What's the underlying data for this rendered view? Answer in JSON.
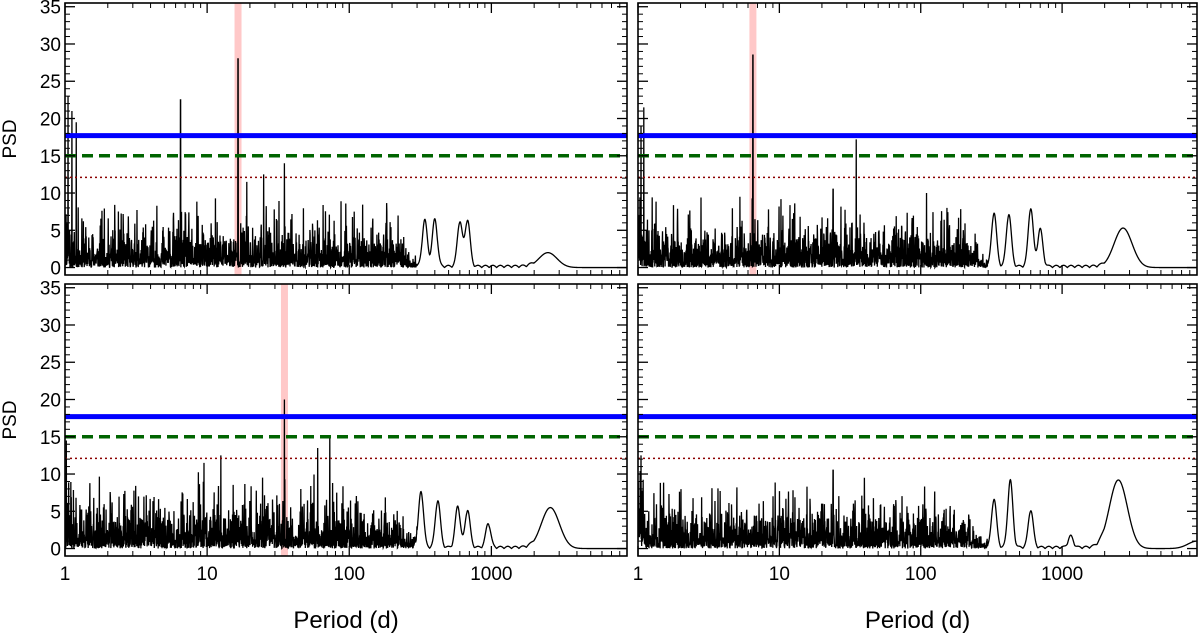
{
  "figure": {
    "xlabel": "Period (d)",
    "ylabel": "PSD"
  },
  "chart_data": [
    {
      "type": "line",
      "panel": "top-left",
      "xscale": "log",
      "xlim": [
        1,
        9000
      ],
      "ylim": [
        -1,
        35.5
      ],
      "ylabel": "PSD",
      "xlabel": "",
      "yticks": [
        "0",
        "5",
        "10",
        "15",
        "20",
        "25",
        "30",
        "35"
      ],
      "xticks": [],
      "highlight_period": 16.5,
      "thresholds": [
        {
          "name": "solid",
          "value": 17.7,
          "color": "#0000ff",
          "style": "solid"
        },
        {
          "name": "dashed",
          "value": 15.0,
          "color": "#006400",
          "style": "dashed"
        },
        {
          "name": "dotted",
          "value": 12.1,
          "color": "#8b0000",
          "style": "dotted"
        }
      ],
      "peaks": [
        [
          1.05,
          23
        ],
        [
          1.12,
          21
        ],
        [
          1.2,
          19.5
        ],
        [
          6.5,
          22.5
        ],
        [
          16.5,
          28
        ],
        [
          35,
          14
        ],
        [
          25,
          12.5
        ],
        [
          19,
          11.5
        ]
      ],
      "bumps": [
        [
          340,
          6.2
        ],
        [
          400,
          6.3
        ],
        [
          600,
          6.0
        ],
        [
          680,
          6.2
        ],
        [
          2500,
          2.0
        ]
      ],
      "noise_level": 3.2,
      "seed": 11
    },
    {
      "type": "line",
      "panel": "top-right",
      "xscale": "log",
      "xlim": [
        1,
        9000
      ],
      "ylim": [
        -1,
        35.5
      ],
      "ylabel": "",
      "xlabel": "",
      "yticks": [],
      "xticks": [],
      "highlight_period": 6.5,
      "thresholds": [
        {
          "name": "solid",
          "value": 17.7,
          "color": "#0000ff",
          "style": "solid"
        },
        {
          "name": "dashed",
          "value": 15.0,
          "color": "#006400",
          "style": "dashed"
        },
        {
          "name": "dotted",
          "value": 12.1,
          "color": "#8b0000",
          "style": "dotted"
        }
      ],
      "peaks": [
        [
          1.1,
          21.5
        ],
        [
          1.05,
          19
        ],
        [
          6.5,
          28.5
        ],
        [
          35,
          17.2
        ],
        [
          110,
          10
        ],
        [
          24,
          10.5
        ]
      ],
      "bumps": [
        [
          330,
          7.2
        ],
        [
          420,
          7.0
        ],
        [
          600,
          7.8
        ],
        [
          700,
          5.0
        ],
        [
          2700,
          5.3
        ]
      ],
      "noise_level": 3.4,
      "seed": 23
    },
    {
      "type": "line",
      "panel": "bottom-left",
      "xscale": "log",
      "xlim": [
        1,
        9000
      ],
      "ylim": [
        -1,
        35.5
      ],
      "ylabel": "PSD",
      "xlabel": "Period (d)",
      "yticks": [
        "0",
        "5",
        "10",
        "15",
        "20",
        "25",
        "30",
        "35"
      ],
      "xticks": [
        "1",
        "10",
        "100",
        "1000"
      ],
      "highlight_period": 35,
      "thresholds": [
        {
          "name": "solid",
          "value": 17.7,
          "color": "#0000ff",
          "style": "solid"
        },
        {
          "name": "dashed",
          "value": 15.0,
          "color": "#006400",
          "style": "dashed"
        },
        {
          "name": "dotted",
          "value": 12.1,
          "color": "#8b0000",
          "style": "dotted"
        }
      ],
      "peaks": [
        [
          35,
          20
        ],
        [
          73,
          15.2
        ],
        [
          12.5,
          12.5
        ],
        [
          9.5,
          11.5
        ],
        [
          60,
          13.5
        ],
        [
          1.02,
          14.5
        ]
      ],
      "bumps": [
        [
          320,
          7.5
        ],
        [
          420,
          6.3
        ],
        [
          580,
          5.5
        ],
        [
          680,
          5.0
        ],
        [
          950,
          3.2
        ],
        [
          2600,
          5.5
        ]
      ],
      "noise_level": 3.6,
      "seed": 37
    },
    {
      "type": "line",
      "panel": "bottom-right",
      "xscale": "log",
      "xlim": [
        1,
        9000
      ],
      "ylim": [
        -1,
        35.5
      ],
      "ylabel": "",
      "xlabel": "Period (d)",
      "yticks": [],
      "xticks": [
        "1",
        "10",
        "100",
        "1000"
      ],
      "highlight_period": null,
      "thresholds": [
        {
          "name": "solid",
          "value": 17.7,
          "color": "#0000ff",
          "style": "solid"
        },
        {
          "name": "dashed",
          "value": 15.0,
          "color": "#006400",
          "style": "dashed"
        },
        {
          "name": "dotted",
          "value": 12.1,
          "color": "#8b0000",
          "style": "dotted"
        }
      ],
      "peaks": [
        [
          1.05,
          12.5
        ],
        [
          24,
          10.5
        ],
        [
          40,
          9.5
        ]
      ],
      "bumps": [
        [
          330,
          6.5
        ],
        [
          430,
          9.0
        ],
        [
          600,
          5.0
        ],
        [
          1150,
          1.5
        ],
        [
          2500,
          9.2
        ],
        [
          9000,
          1.0
        ]
      ],
      "noise_level": 3.2,
      "seed": 51
    }
  ]
}
